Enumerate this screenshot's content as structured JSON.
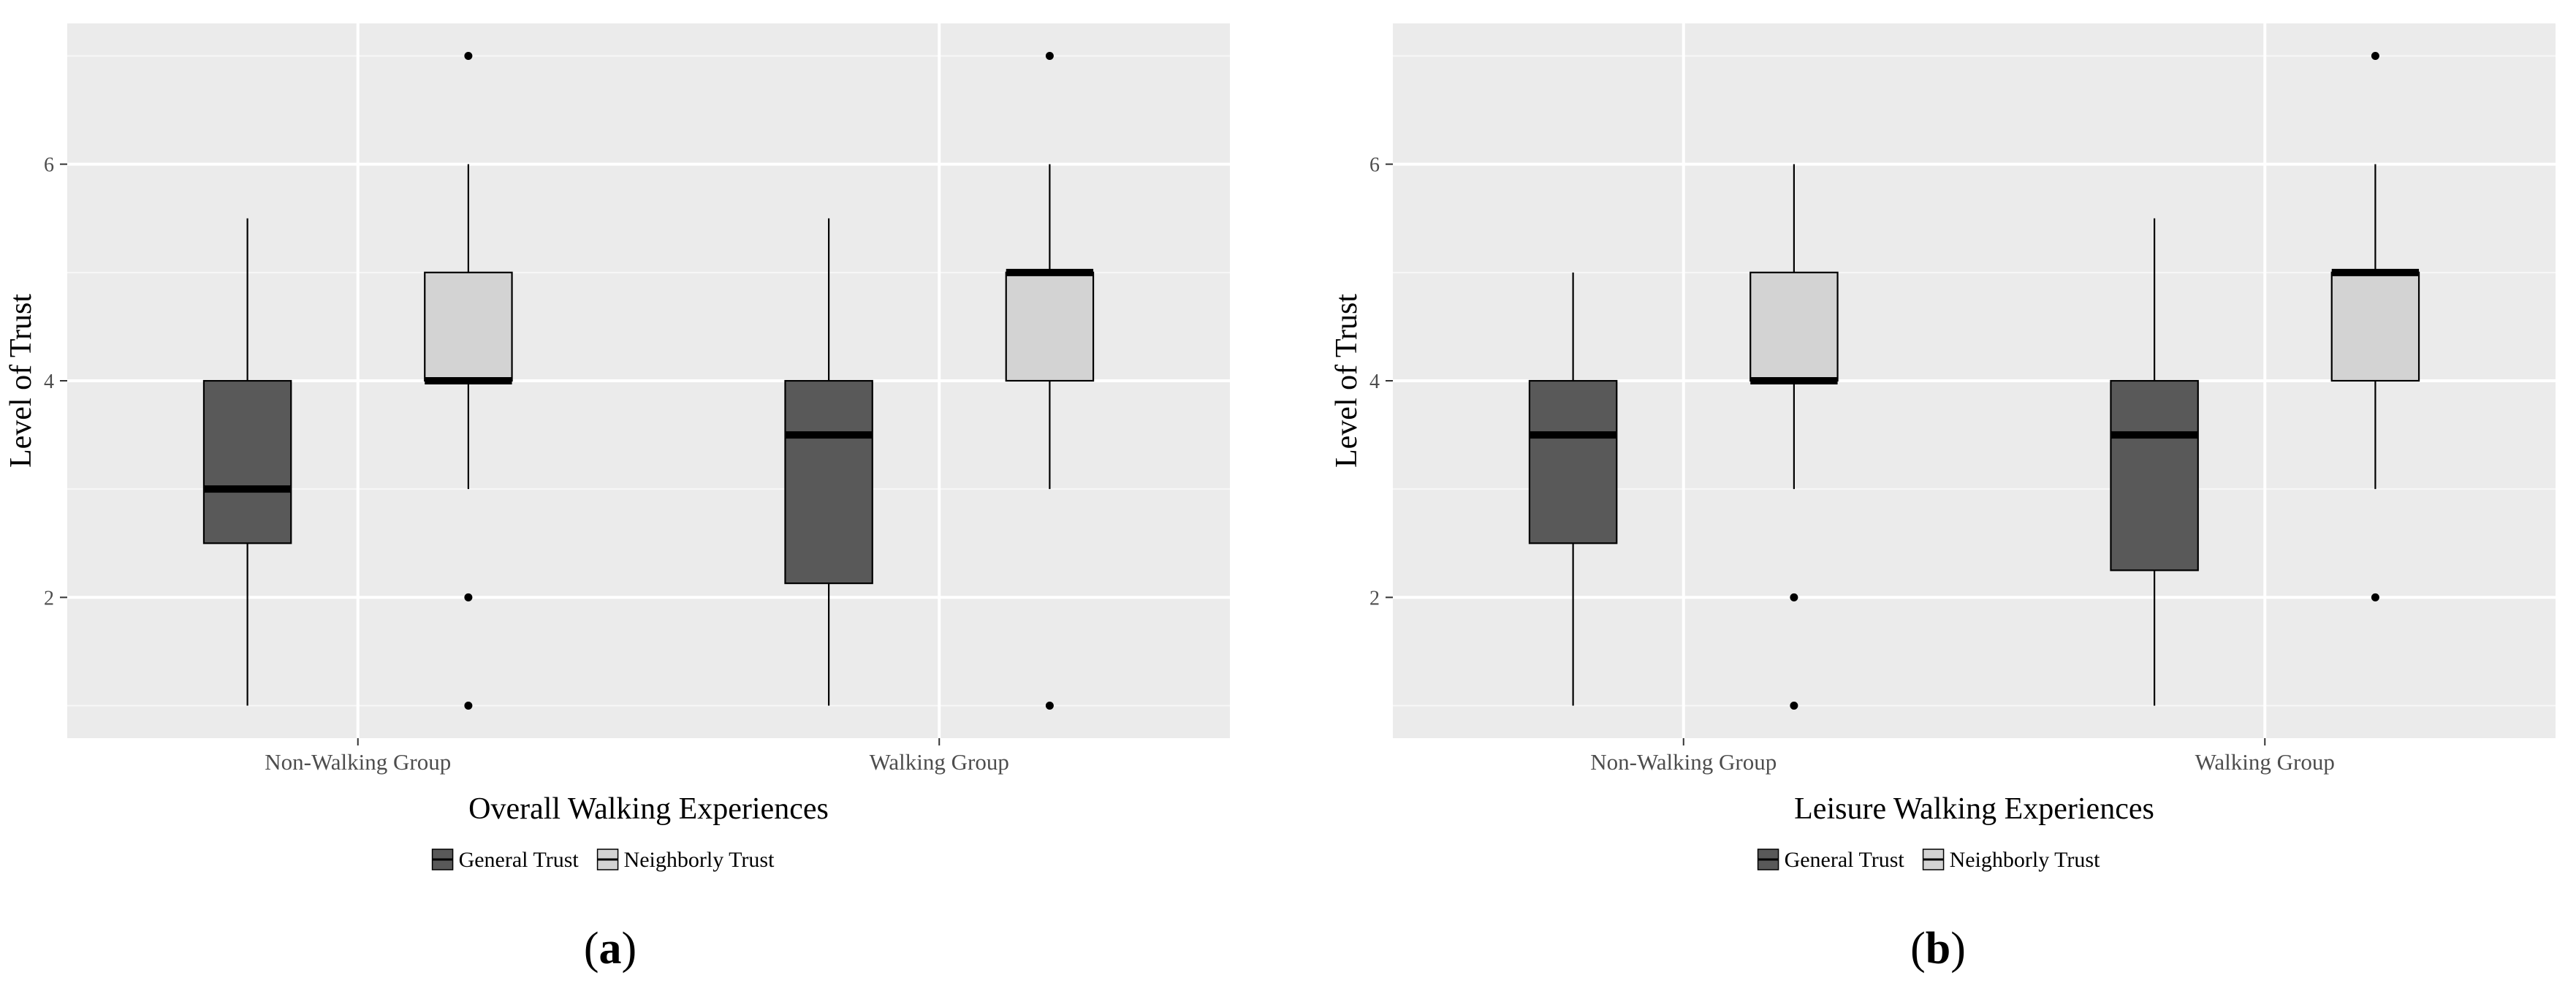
{
  "chart_data": [
    {
      "type": "boxplot",
      "panel_label": "(a)",
      "label_letter": "a",
      "xlabel": "Overall Walking Experiences",
      "ylabel": "Level of Trust",
      "ylim": [
        0.7,
        7.3
      ],
      "yticks": [
        2,
        4,
        6
      ],
      "grid": true,
      "legend_position": "bottom",
      "categories": [
        "Non-Walking Group",
        "Walking Group"
      ],
      "series": [
        {
          "name": "General Trust",
          "fill": "#595959",
          "boxes": [
            {
              "min": 1,
              "q1": 2.5,
              "median": 3,
              "q3": 4,
              "max": 5.5,
              "outliers": []
            },
            {
              "min": 1,
              "q1": 2.13,
              "median": 3.5,
              "q3": 4,
              "max": 5.5,
              "outliers": []
            }
          ]
        },
        {
          "name": "Neighborly Trust",
          "fill": "#d3d3d3",
          "boxes": [
            {
              "min": 3,
              "q1": 4,
              "median": 4,
              "q3": 5,
              "max": 6,
              "outliers": [
                7,
                2,
                1
              ]
            },
            {
              "min": 3,
              "q1": 4,
              "median": 5,
              "q3": 5,
              "max": 6,
              "outliers": [
                7,
                1
              ]
            }
          ]
        }
      ]
    },
    {
      "type": "boxplot",
      "panel_label": "(b)",
      "label_letter": "b",
      "xlabel": "Leisure Walking Experiences",
      "ylabel": "Level of Trust",
      "ylim": [
        0.7,
        7.3
      ],
      "yticks": [
        2,
        4,
        6
      ],
      "grid": true,
      "legend_position": "bottom",
      "categories": [
        "Non-Walking Group",
        "Walking Group"
      ],
      "series": [
        {
          "name": "General Trust",
          "fill": "#595959",
          "boxes": [
            {
              "min": 1,
              "q1": 2.5,
              "median": 3.5,
              "q3": 4,
              "max": 5,
              "outliers": []
            },
            {
              "min": 1,
              "q1": 2.25,
              "median": 3.5,
              "q3": 4,
              "max": 5.5,
              "outliers": []
            }
          ]
        },
        {
          "name": "Neighborly Trust",
          "fill": "#d3d3d3",
          "boxes": [
            {
              "min": 3,
              "q1": 4,
              "median": 4,
              "q3": 5,
              "max": 6,
              "outliers": [
                2,
                1
              ]
            },
            {
              "min": 3,
              "q1": 4,
              "median": 5,
              "q3": 5,
              "max": 6,
              "outliers": [
                7,
                2
              ]
            }
          ]
        }
      ]
    }
  ]
}
